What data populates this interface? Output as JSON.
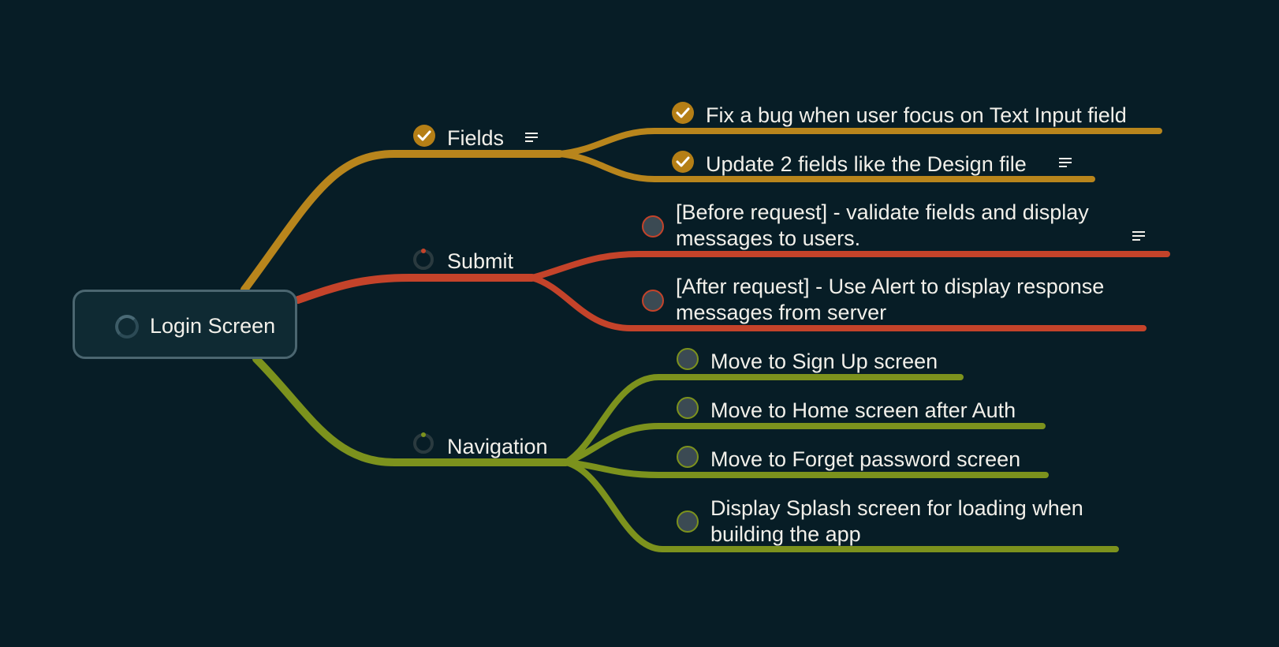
{
  "mindmap": {
    "root": {
      "label": "Login Screen",
      "icon": "progress-ring-icon"
    },
    "branches": [
      {
        "label": "Fields",
        "color": "#b8851c",
        "status": "done",
        "has_note": true,
        "children": [
          {
            "label": "Fix a bug when user focus on Text Input field",
            "status": "done",
            "has_note": false
          },
          {
            "label": "Update 2 fields like the Design file",
            "status": "done",
            "has_note": true
          }
        ]
      },
      {
        "label": "Submit",
        "color": "#c4432a",
        "status": "in-progress",
        "has_note": false,
        "children": [
          {
            "label": [
              "[Before request] - validate fields and display",
              "messages to users."
            ],
            "status": "todo",
            "has_note": true
          },
          {
            "label": [
              "[After request] - Use Alert to display response",
              "messages from server"
            ],
            "status": "todo",
            "has_note": false
          }
        ]
      },
      {
        "label": "Navigation",
        "color": "#7c921d",
        "status": "in-progress",
        "has_note": false,
        "children": [
          {
            "label": "Move to Sign Up screen",
            "status": "todo",
            "has_note": false
          },
          {
            "label": "Move to Home screen after Auth",
            "status": "todo",
            "has_note": false
          },
          {
            "label": "Move to Forget password screen",
            "status": "todo",
            "has_note": false
          },
          {
            "label": [
              "Display Splash screen for loading when",
              "building the app"
            ],
            "status": "todo",
            "has_note": false
          }
        ]
      }
    ]
  },
  "colors": {
    "background": "#071d26",
    "done": "#b57f16",
    "todo_fill": "#3b4a53"
  }
}
